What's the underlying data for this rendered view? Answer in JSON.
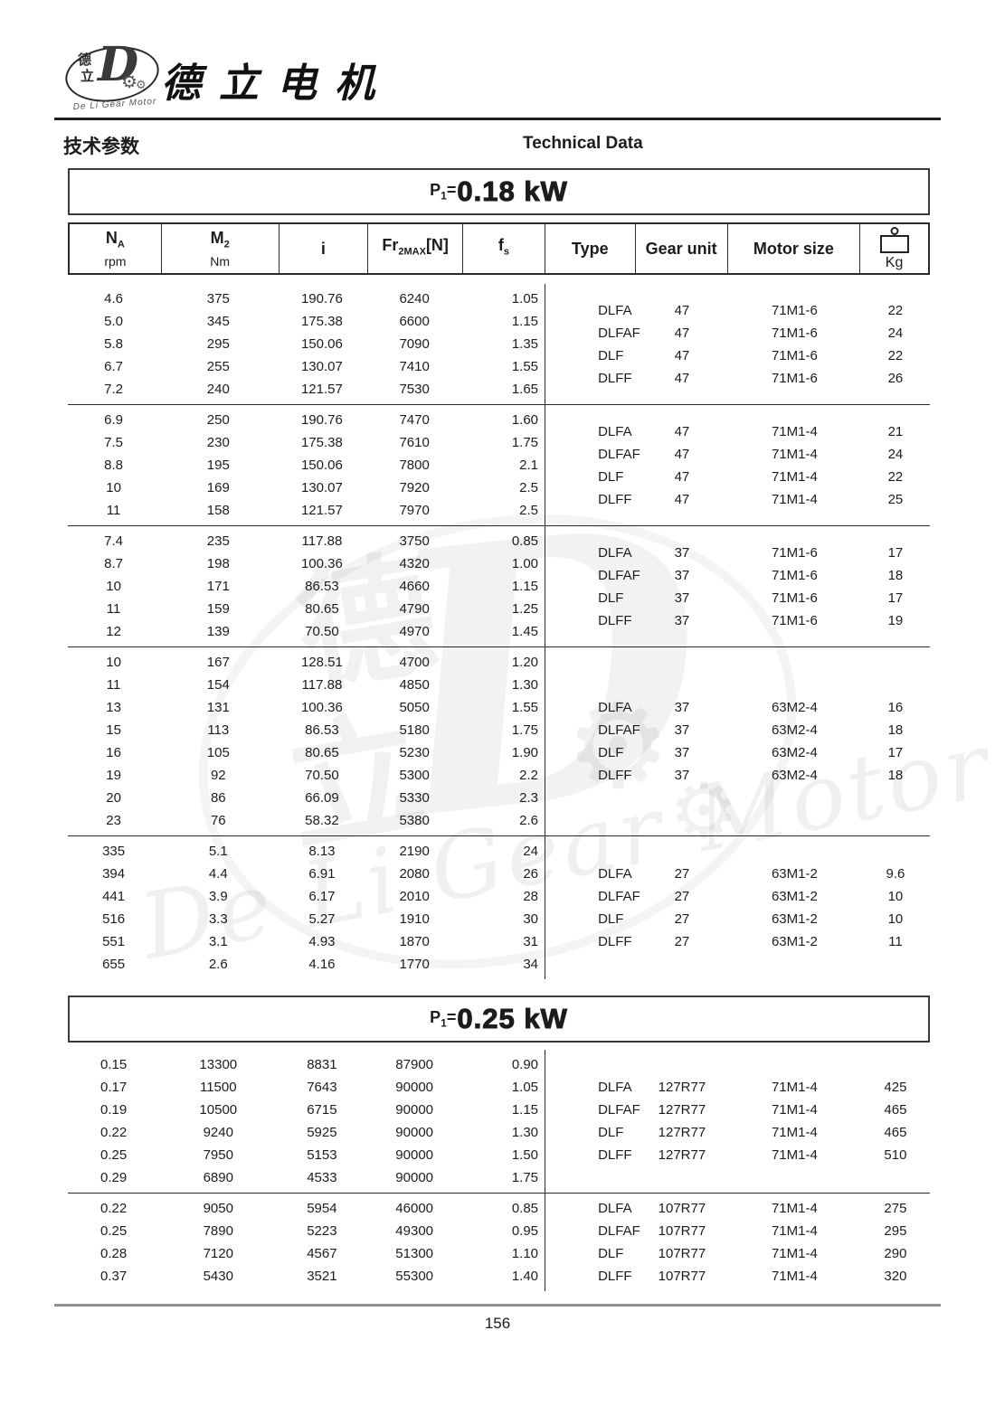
{
  "header": {
    "logo": {
      "char_top": "德",
      "char_bottom": "立",
      "letter": "D",
      "arc_text": "De Li Gear Motor"
    },
    "brand": "德立电机",
    "section_cn": "技术参数",
    "section_en": "Technical Data"
  },
  "columns": [
    {
      "main": "N",
      "sub": "A",
      "unit": "rpm"
    },
    {
      "main": "M",
      "sub": "2",
      "unit": "Nm"
    },
    {
      "main": "i"
    },
    {
      "main": "Fr",
      "sub": "2MAX",
      "rest": "[N]"
    },
    {
      "main": "f",
      "sub": "s"
    },
    {
      "main": "Type"
    },
    {
      "main": "Gear unit"
    },
    {
      "main": "Motor size"
    },
    {
      "icon": "weight-icon",
      "unit": "Kg"
    }
  ],
  "tables": [
    {
      "power": {
        "prefix": "P",
        "sub": "1",
        "eq": "=",
        "value": "0.18 kW"
      },
      "blocks": [
        {
          "left": [
            [
              "4.6",
              "375",
              "190.76",
              "6240",
              "1.05"
            ],
            [
              "5.0",
              "345",
              "175.38",
              "6600",
              "1.15"
            ],
            [
              "5.8",
              "295",
              "150.06",
              "7090",
              "1.35"
            ],
            [
              "6.7",
              "255",
              "130.07",
              "7410",
              "1.55"
            ],
            [
              "7.2",
              "240",
              "121.57",
              "7530",
              "1.65"
            ]
          ],
          "right": [
            [
              "DLFA",
              "47",
              "71M1-6",
              "22"
            ],
            [
              "DLFAF",
              "47",
              "71M1-6",
              "24"
            ],
            [
              "DLF",
              "47",
              "71M1-6",
              "22"
            ],
            [
              "DLFF",
              "47",
              "71M1-6",
              "26"
            ]
          ]
        },
        {
          "left": [
            [
              "6.9",
              "250",
              "190.76",
              "7470",
              "1.60"
            ],
            [
              "7.5",
              "230",
              "175.38",
              "7610",
              "1.75"
            ],
            [
              "8.8",
              "195",
              "150.06",
              "7800",
              "2.1"
            ],
            [
              "10",
              "169",
              "130.07",
              "7920",
              "2.5"
            ],
            [
              "11",
              "158",
              "121.57",
              "7970",
              "2.5"
            ]
          ],
          "right": [
            [
              "DLFA",
              "47",
              "71M1-4",
              "21"
            ],
            [
              "DLFAF",
              "47",
              "71M1-4",
              "24"
            ],
            [
              "DLF",
              "47",
              "71M1-4",
              "22"
            ],
            [
              "DLFF",
              "47",
              "71M1-4",
              "25"
            ]
          ]
        },
        {
          "left": [
            [
              "7.4",
              "235",
              "117.88",
              "3750",
              "0.85"
            ],
            [
              "8.7",
              "198",
              "100.36",
              "4320",
              "1.00"
            ],
            [
              "10",
              "171",
              "86.53",
              "4660",
              "1.15"
            ],
            [
              "11",
              "159",
              "80.65",
              "4790",
              "1.25"
            ],
            [
              "12",
              "139",
              "70.50",
              "4970",
              "1.45"
            ]
          ],
          "right": [
            [
              "DLFA",
              "37",
              "71M1-6",
              "17"
            ],
            [
              "DLFAF",
              "37",
              "71M1-6",
              "18"
            ],
            [
              "DLF",
              "37",
              "71M1-6",
              "17"
            ],
            [
              "DLFF",
              "37",
              "71M1-6",
              "19"
            ]
          ]
        },
        {
          "left": [
            [
              "10",
              "167",
              "128.51",
              "4700",
              "1.20"
            ],
            [
              "11",
              "154",
              "117.88",
              "4850",
              "1.30"
            ],
            [
              "13",
              "131",
              "100.36",
              "5050",
              "1.55"
            ],
            [
              "15",
              "113",
              "86.53",
              "5180",
              "1.75"
            ],
            [
              "16",
              "105",
              "80.65",
              "5230",
              "1.90"
            ],
            [
              "19",
              "92",
              "70.50",
              "5300",
              "2.2"
            ],
            [
              "20",
              "86",
              "66.09",
              "5330",
              "2.3"
            ],
            [
              "23",
              "76",
              "58.32",
              "5380",
              "2.6"
            ]
          ],
          "right": [
            [
              "DLFA",
              "37",
              "63M2-4",
              "16"
            ],
            [
              "DLFAF",
              "37",
              "63M2-4",
              "18"
            ],
            [
              "DLF",
              "37",
              "63M2-4",
              "17"
            ],
            [
              "DLFF",
              "37",
              "63M2-4",
              "18"
            ]
          ]
        },
        {
          "left": [
            [
              "335",
              "5.1",
              "8.13",
              "2190",
              "24"
            ],
            [
              "394",
              "4.4",
              "6.91",
              "2080",
              "26"
            ],
            [
              "441",
              "3.9",
              "6.17",
              "2010",
              "28"
            ],
            [
              "516",
              "3.3",
              "5.27",
              "1910",
              "30"
            ],
            [
              "551",
              "3.1",
              "4.93",
              "1870",
              "31"
            ],
            [
              "655",
              "2.6",
              "4.16",
              "1770",
              "34"
            ]
          ],
          "right": [
            [
              "DLFA",
              "27",
              "63M1-2",
              "9.6"
            ],
            [
              "DLFAF",
              "27",
              "63M1-2",
              "10"
            ],
            [
              "DLF",
              "27",
              "63M1-2",
              "10"
            ],
            [
              "DLFF",
              "27",
              "63M1-2",
              "11"
            ]
          ]
        }
      ]
    },
    {
      "power": {
        "prefix": "P",
        "sub": "1",
        "eq": "=",
        "value": "0.25 kW"
      },
      "blocks": [
        {
          "left": [
            [
              "0.15",
              "13300",
              "8831",
              "87900",
              "0.90"
            ],
            [
              "0.17",
              "11500",
              "7643",
              "90000",
              "1.05"
            ],
            [
              "0.19",
              "10500",
              "6715",
              "90000",
              "1.15"
            ],
            [
              "0.22",
              "9240",
              "5925",
              "90000",
              "1.30"
            ],
            [
              "0.25",
              "7950",
              "5153",
              "90000",
              "1.50"
            ],
            [
              "0.29",
              "6890",
              "4533",
              "90000",
              "1.75"
            ]
          ],
          "right": [
            [
              "DLFA",
              "127R77",
              "71M1-4",
              "425"
            ],
            [
              "DLFAF",
              "127R77",
              "71M1-4",
              "465"
            ],
            [
              "DLF",
              "127R77",
              "71M1-4",
              "465"
            ],
            [
              "DLFF",
              "127R77",
              "71M1-4",
              "510"
            ]
          ]
        },
        {
          "left": [
            [
              "0.22",
              "9050",
              "5954",
              "46000",
              "0.85"
            ],
            [
              "0.25",
              "7890",
              "5223",
              "49300",
              "0.95"
            ],
            [
              "0.28",
              "7120",
              "4567",
              "51300",
              "1.10"
            ],
            [
              "0.37",
              "5430",
              "3521",
              "55300",
              "1.40"
            ]
          ],
          "right": [
            [
              "DLFA",
              "107R77",
              "71M1-4",
              "275"
            ],
            [
              "DLFAF",
              "107R77",
              "71M1-4",
              "295"
            ],
            [
              "DLF",
              "107R77",
              "71M1-4",
              "290"
            ],
            [
              "DLFF",
              "107R77",
              "71M1-4",
              "320"
            ]
          ]
        }
      ]
    }
  ],
  "watermark": {
    "char_top": "德",
    "char_bottom": "立",
    "letter": "D",
    "gear_icon": "⚙",
    "text": "De Li Gear Motor"
  },
  "footer": {
    "page_number": "156"
  }
}
